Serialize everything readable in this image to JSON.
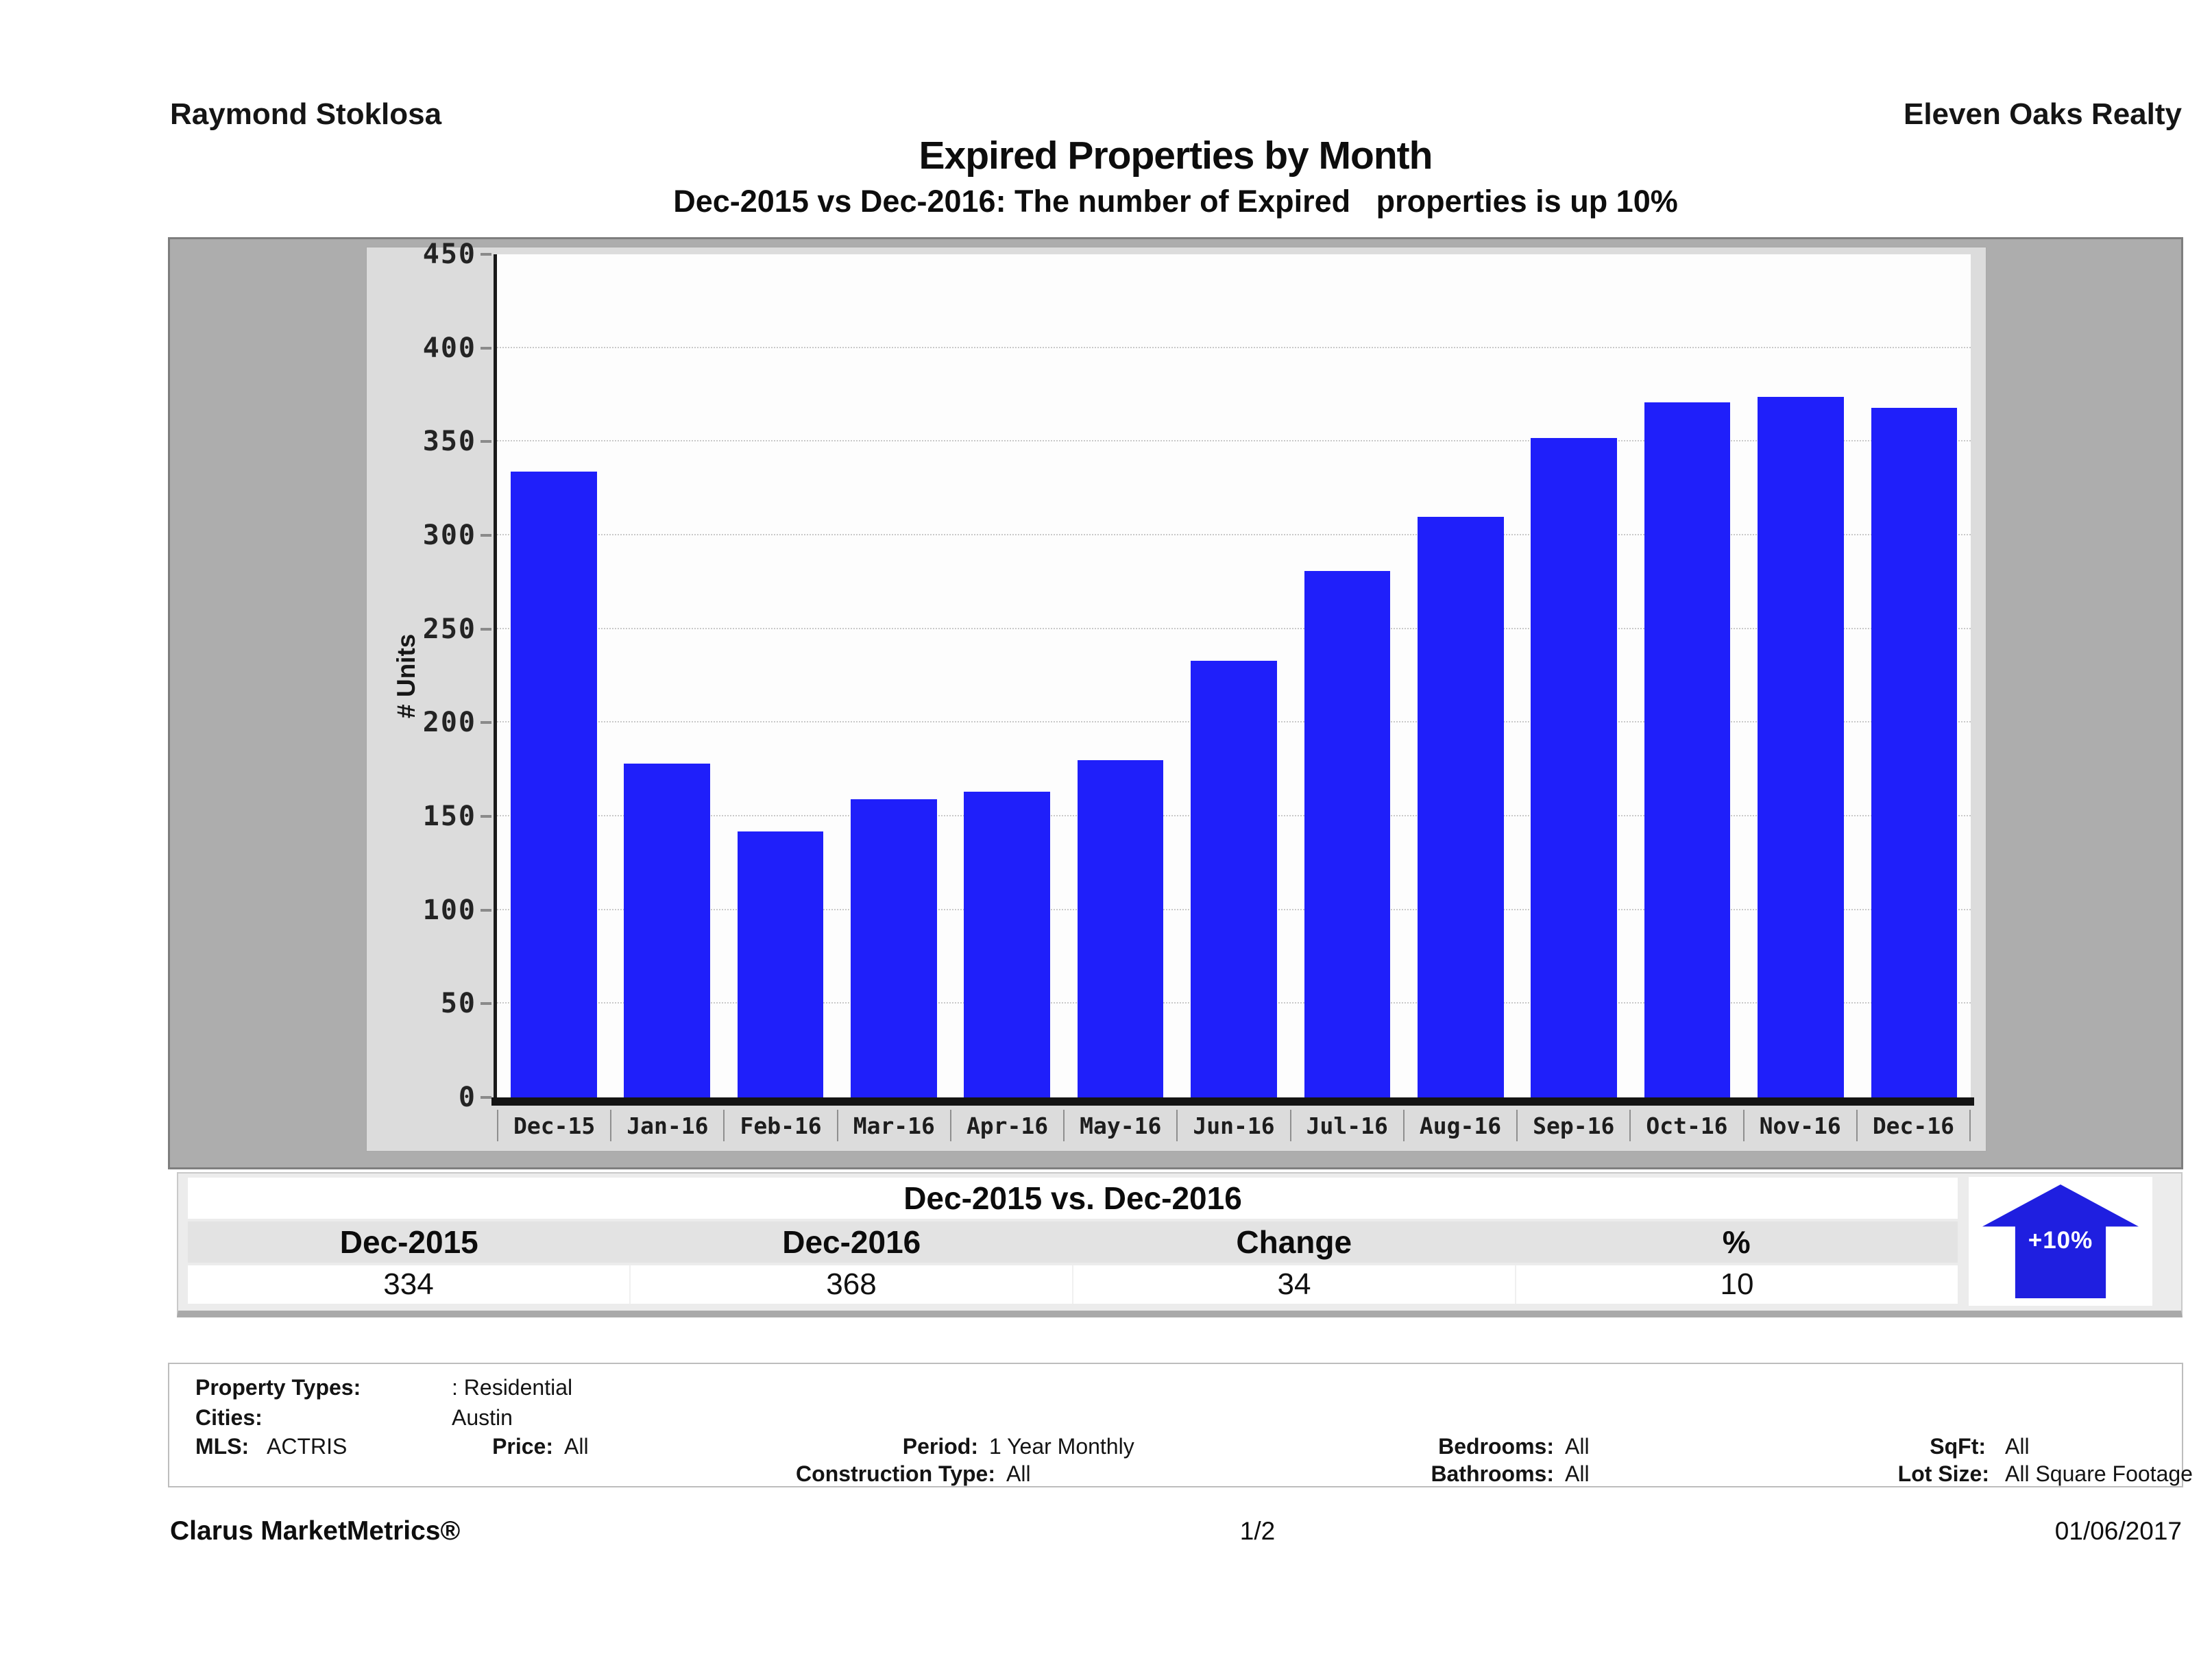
{
  "header": {
    "left_name": "Raymond Stoklosa",
    "right_name": "Eleven Oaks Realty",
    "title": "Expired Properties by Month",
    "subtitle": "Dec-2015 vs Dec-2016: The number of Expired   properties is up 10%"
  },
  "chart_data": {
    "type": "bar",
    "title": "Expired Properties by Month",
    "categories": [
      "Dec-15",
      "Jan-16",
      "Feb-16",
      "Mar-16",
      "Apr-16",
      "May-16",
      "Jun-16",
      "Jul-16",
      "Aug-16",
      "Sep-16",
      "Oct-16",
      "Nov-16",
      "Dec-16"
    ],
    "values": [
      334,
      178,
      142,
      159,
      163,
      180,
      233,
      281,
      310,
      352,
      371,
      374,
      368
    ],
    "xlabel": "",
    "ylabel": "# Units",
    "ylim": [
      0,
      450
    ],
    "ytick_step": 50,
    "grid": true,
    "legend": false,
    "bar_color": "#1F1FFA"
  },
  "summary": {
    "title": "Dec-2015 vs. Dec-2016",
    "columns": [
      "Dec-2015",
      "Dec-2016",
      "Change",
      "%"
    ],
    "values": [
      "334",
      "368",
      "34",
      "10"
    ],
    "arrow_label": "+10%",
    "arrow_direction": "up",
    "arrow_color": "#1F1FE0"
  },
  "filters": {
    "property_types_label": "Property Types:",
    "property_types_value": ": Residential",
    "cities_label": "Cities:",
    "cities_value": "Austin",
    "mls_label": "MLS:",
    "mls_value": "ACTRIS",
    "price_label": "Price:",
    "price_value": "All",
    "period_label": "Period:",
    "period_value": "1 Year Monthly",
    "construction_label": "Construction Type:",
    "construction_value": "All",
    "bedrooms_label": "Bedrooms:",
    "bedrooms_value": "All",
    "bathrooms_label": "Bathrooms:",
    "bathrooms_value": "All",
    "sqft_label": "SqFt:",
    "sqft_value": "All",
    "lotsize_label": "Lot Size:",
    "lotsize_value": "All Square Footage"
  },
  "footer": {
    "product": "Clarus MarketMetrics®",
    "page": "1/2",
    "date": "01/06/2017"
  }
}
